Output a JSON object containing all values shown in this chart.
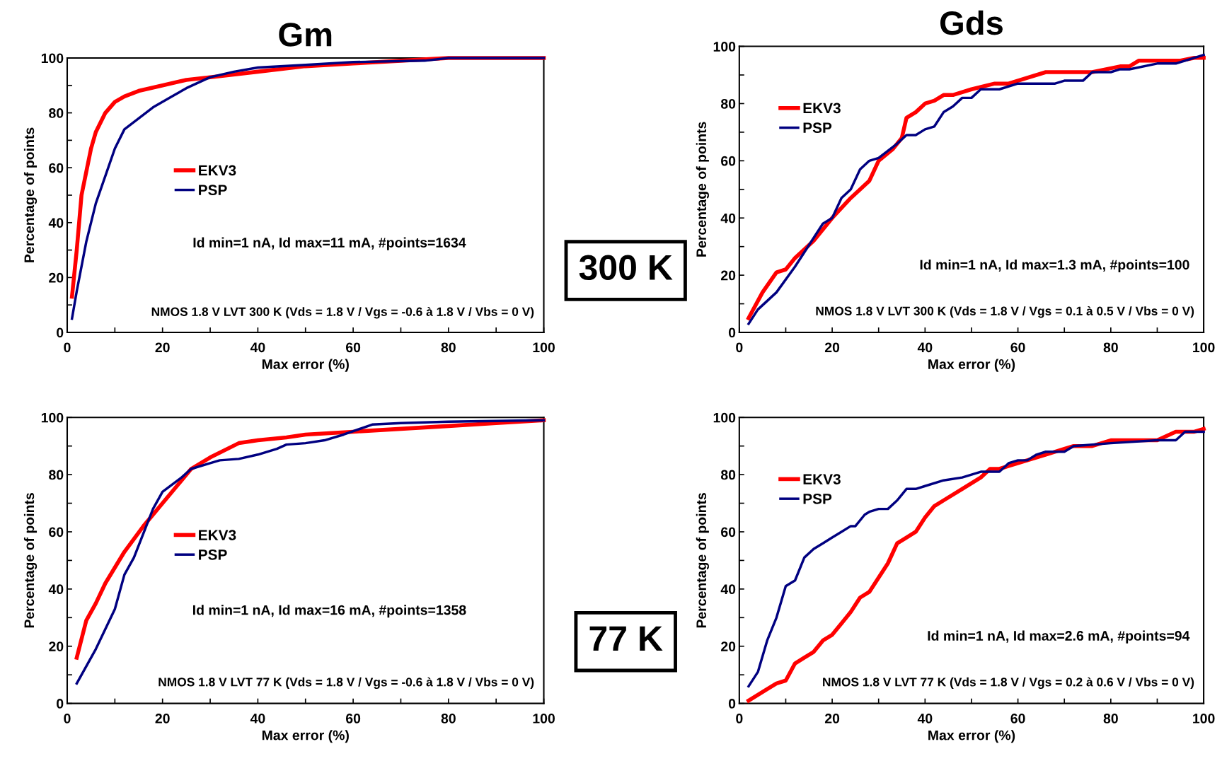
{
  "chart_data": [
    {
      "type": "line",
      "title": "Gm",
      "xlabel": "Max error (%)",
      "ylabel": "Percentage of points",
      "xlim": [
        0,
        100
      ],
      "ylim": [
        0,
        100
      ],
      "xticks": [
        0,
        {
          "value": 10,
          "label": null
        },
        20,
        {
          "value": 30,
          "label": null
        },
        40,
        {
          "value": 50,
          "label": null
        },
        60,
        {
          "value": 70,
          "label": null
        },
        80,
        {
          "value": 90,
          "label": null
        },
        100
      ],
      "yticks": [
        0,
        {
          "value": 10,
          "label": null
        },
        20,
        {
          "value": 30,
          "label": null
        },
        40,
        {
          "value": 50,
          "label": null
        },
        60,
        {
          "value": 70,
          "label": null
        },
        80,
        {
          "value": 90,
          "label": null
        },
        100
      ],
      "grid": false,
      "legend": "left",
      "marker": "none",
      "line_style": "solid",
      "annotations": [
        "Id min=1 nA, Id max=11 mA, #points=1634",
        "NMOS 1.8 V LVT 300 K (Vds = 1.8 V / Vgs = -0.6 à 1.8 V / Vbs = 0 V)",
        "300 K"
      ],
      "series": [
        {
          "name": "EKV3",
          "color": "#ff0000",
          "x": [
            1,
            2,
            3,
            5,
            6,
            8,
            10,
            12,
            15,
            20,
            25,
            30,
            40,
            50,
            60,
            70,
            80,
            100
          ],
          "values": [
            13,
            30,
            50,
            67,
            73,
            80,
            84,
            86,
            88,
            90,
            92,
            93,
            95,
            97,
            98,
            99,
            100,
            100
          ]
        },
        {
          "name": "PSP",
          "color": "#000080",
          "x": [
            1,
            2,
            4,
            6,
            8,
            10,
            12,
            15,
            18,
            22,
            25,
            30,
            35,
            40,
            50,
            60,
            75,
            80,
            100
          ],
          "values": [
            5,
            15,
            33,
            47,
            57,
            67,
            74,
            78,
            82,
            86,
            89,
            93,
            95,
            96.5,
            97.5,
            98.5,
            99,
            100,
            100
          ]
        }
      ]
    },
    {
      "type": "line",
      "title": "Gds",
      "xlabel": "Max error (%)",
      "ylabel": "Percentage of points",
      "xlim": [
        0,
        100
      ],
      "ylim": [
        0,
        100
      ],
      "xticks": [
        0,
        {
          "value": 10,
          "label": null
        },
        20,
        {
          "value": 30,
          "label": null
        },
        40,
        {
          "value": 50,
          "label": null
        },
        60,
        {
          "value": 70,
          "label": null
        },
        80,
        {
          "value": 90,
          "label": null
        },
        100
      ],
      "yticks": [
        0,
        {
          "value": 10,
          "label": null
        },
        20,
        {
          "value": 30,
          "label": null
        },
        40,
        {
          "value": 50,
          "label": null
        },
        60,
        {
          "value": 70,
          "label": null
        },
        80,
        {
          "value": 90,
          "label": null
        },
        100
      ],
      "grid": false,
      "legend": "upper left",
      "marker": "none",
      "line_style": "solid",
      "annotations": [
        "Id min=1 nA, Id max=1.3 mA, #points=100",
        "NMOS 1.8 V LVT 300 K (Vds = 1.8 V / Vgs = 0.1 à 0.5 V / Vbs = 0 V)"
      ],
      "series": [
        {
          "name": "EKV3",
          "color": "#ff0000",
          "x": [
            2,
            5,
            8,
            10,
            12,
            16,
            20,
            24,
            28,
            30,
            33,
            35,
            36,
            38,
            40,
            42,
            44,
            46,
            50,
            55,
            58,
            66,
            76,
            82,
            84,
            86,
            95,
            98,
            100
          ],
          "values": [
            5,
            14,
            21,
            22,
            26,
            32,
            40,
            47,
            53,
            60,
            64,
            68,
            75,
            77,
            80,
            81,
            83,
            83,
            85,
            87,
            87,
            91,
            91,
            93,
            93,
            95,
            95,
            96,
            96
          ]
        },
        {
          "name": "PSP",
          "color": "#000080",
          "x": [
            2,
            4,
            8,
            12,
            16,
            18,
            20,
            22,
            24,
            26,
            28,
            30,
            34,
            36,
            38,
            40,
            42,
            44,
            46,
            48,
            50,
            52,
            56,
            60,
            68,
            70,
            74,
            76,
            80,
            82,
            84,
            90,
            94,
            100
          ],
          "values": [
            3,
            8,
            14,
            23,
            33,
            38,
            40,
            47,
            50,
            57,
            60,
            61,
            66,
            69,
            69,
            71,
            72,
            77,
            79,
            82,
            82,
            85,
            85,
            87,
            87,
            88,
            88,
            91,
            91,
            92,
            92,
            94,
            94,
            97
          ]
        }
      ]
    },
    {
      "type": "line",
      "xlabel": "Max error (%)",
      "ylabel": "Percentage of points",
      "xlim": [
        0,
        100
      ],
      "ylim": [
        0,
        100
      ],
      "xticks": [
        0,
        {
          "value": 10,
          "label": null
        },
        20,
        {
          "value": 30,
          "label": null
        },
        40,
        {
          "value": 50,
          "label": null
        },
        60,
        {
          "value": 70,
          "label": null
        },
        80,
        {
          "value": 90,
          "label": null
        },
        100
      ],
      "yticks": [
        0,
        {
          "value": 10,
          "label": null
        },
        20,
        {
          "value": 30,
          "label": null
        },
        40,
        {
          "value": 50,
          "label": null
        },
        60,
        {
          "value": 70,
          "label": null
        },
        80,
        {
          "value": 90,
          "label": null
        },
        100
      ],
      "grid": false,
      "legend": "left",
      "marker": "none",
      "line_style": "solid",
      "annotations": [
        "Id min=1 nA, Id max=16 mA, #points=1358",
        "NMOS 1.8 V LVT 77 K (Vds = 1.8 V / Vgs = -0.6 à 1.8 V / Vbs = 0 V)",
        "77 K"
      ],
      "series": [
        {
          "name": "EKV3",
          "color": "#ff0000",
          "x": [
            2,
            4,
            6,
            8,
            12,
            16,
            20,
            24,
            26,
            30,
            36,
            40,
            46,
            50,
            60,
            70,
            80,
            90,
            100
          ],
          "values": [
            16,
            29,
            35,
            42,
            53,
            62,
            70,
            78,
            82,
            86,
            91,
            92,
            93,
            94,
            95,
            96,
            97,
            98,
            99
          ]
        },
        {
          "name": "PSP",
          "color": "#000080",
          "x": [
            2,
            4,
            6,
            8,
            10,
            12,
            14,
            18,
            20,
            24,
            26,
            30,
            32,
            36,
            40,
            44,
            46,
            50,
            54,
            58,
            64,
            70,
            80,
            100
          ],
          "values": [
            7,
            13,
            19,
            26,
            33,
            45,
            51,
            68,
            74,
            79,
            82,
            84,
            85,
            85.5,
            87,
            89,
            90.5,
            91,
            92,
            94,
            97.5,
            98,
            98.5,
            99
          ]
        }
      ]
    },
    {
      "type": "line",
      "xlabel": "Max error (%)",
      "ylabel": "Percentage of points",
      "xlim": [
        0,
        100
      ],
      "ylim": [
        0,
        100
      ],
      "xticks": [
        0,
        {
          "value": 10,
          "label": null
        },
        20,
        {
          "value": 30,
          "label": null
        },
        40,
        {
          "value": 50,
          "label": null
        },
        60,
        {
          "value": 70,
          "label": null
        },
        80,
        {
          "value": 90,
          "label": null
        },
        100
      ],
      "yticks": [
        0,
        {
          "value": 10,
          "label": null
        },
        20,
        {
          "value": 30,
          "label": null
        },
        40,
        {
          "value": 50,
          "label": null
        },
        60,
        {
          "value": 70,
          "label": null
        },
        80,
        {
          "value": 90,
          "label": null
        },
        100
      ],
      "grid": false,
      "legend": "upper left",
      "marker": "none",
      "line_style": "solid",
      "annotations": [
        "Id min=1 nA, Id max=2.6 mA, #points=94",
        "NMOS 1.8 V LVT 77 K (Vds = 1.8 V / Vgs = 0.2 à 0.6 V / Vbs = 0 V)"
      ],
      "series": [
        {
          "name": "EKV3",
          "color": "#ff0000",
          "x": [
            2,
            6,
            8,
            10,
            12,
            14,
            16,
            18,
            20,
            22,
            24,
            26,
            28,
            30,
            32,
            34,
            36,
            38,
            40,
            42,
            44,
            48,
            52,
            54,
            56,
            58,
            62,
            66,
            70,
            72,
            76,
            80,
            82,
            90,
            94,
            98,
            100
          ],
          "values": [
            1,
            5,
            7,
            8,
            14,
            16,
            18,
            22,
            24,
            28,
            32,
            37,
            39,
            44,
            49,
            56,
            58,
            60,
            65,
            69,
            71,
            75,
            79,
            82,
            82,
            83,
            85,
            87,
            89,
            90,
            90,
            92,
            92,
            92,
            95,
            95,
            96
          ]
        },
        {
          "name": "PSP",
          "color": "#000080",
          "x": [
            2,
            4,
            6,
            8,
            10,
            11,
            12,
            14,
            16,
            18,
            20,
            22,
            24,
            25,
            27,
            28,
            30,
            32,
            34,
            36,
            38,
            40,
            44,
            48,
            52,
            56,
            58,
            60,
            62,
            64,
            66,
            70,
            72,
            80,
            90,
            94,
            96,
            100
          ],
          "values": [
            6,
            11,
            22,
            30,
            41,
            42,
            43,
            51,
            54,
            56,
            58,
            60,
            62,
            62,
            66,
            67,
            68,
            68,
            71,
            75,
            75,
            76,
            78,
            79,
            81,
            81,
            84,
            85,
            85,
            87,
            88,
            88,
            90,
            91,
            92,
            92,
            95,
            95
          ]
        }
      ]
    }
  ]
}
